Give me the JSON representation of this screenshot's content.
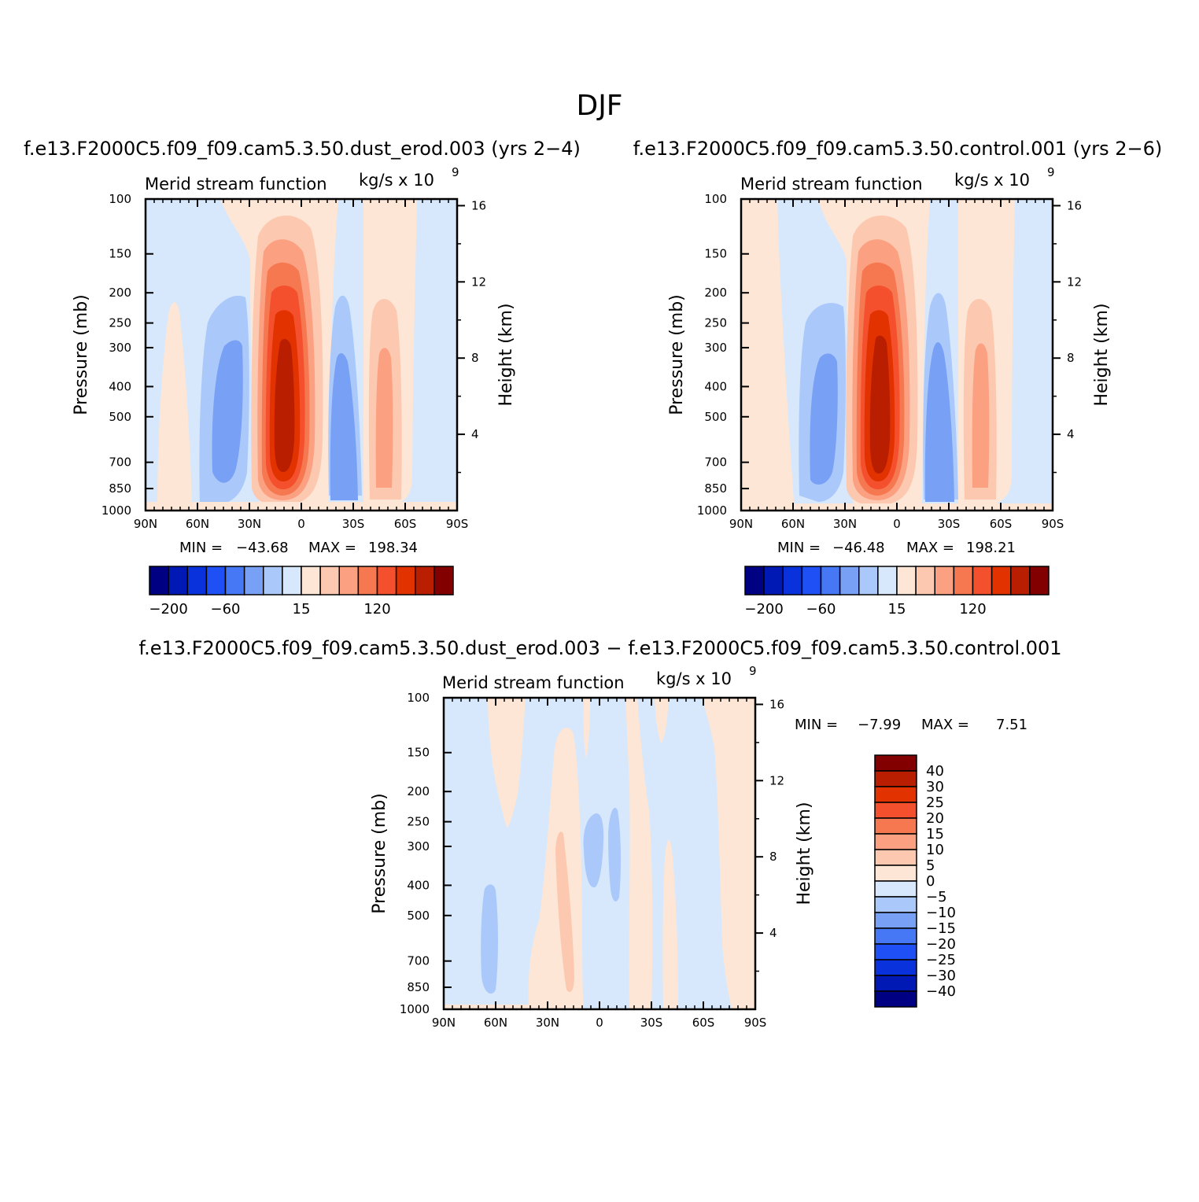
{
  "figure": {
    "title": "DJF"
  },
  "chart_data": [
    {
      "type": "heatmap",
      "panel": "top-left",
      "case_title": "f.e13.F2000C5.f09_f09.cam5.3.50.dust_erod.003 (yrs 2−4)",
      "subtitle_left": "Merid stream function",
      "units_label": "kg/s x 10",
      "units_exponent": "9",
      "ylabel": "Pressure (mb)",
      "ylabel_right": "Height (km)",
      "xlim": [
        90,
        -90
      ],
      "x_ticks": [
        "90N",
        "60N",
        "30N",
        "0",
        "30S",
        "60S",
        "90S"
      ],
      "y_ticks": [
        "100",
        "150",
        "200",
        "250",
        "300",
        "400",
        "500",
        "700",
        "850",
        "1000"
      ],
      "y_right_ticks": [
        "16",
        "12",
        "8",
        "4"
      ],
      "min_label": "MIN =",
      "min_value": "−43.68",
      "max_label": "MAX =",
      "max_value": "198.34",
      "colorbar_labels": [
        "−200",
        "−60",
        "15",
        "120"
      ],
      "cells": [
        {
          "lat": 70,
          "plev": 500,
          "value": -10,
          "wlat": 10,
          "wp": 380
        },
        {
          "lat": 38,
          "plev": 450,
          "value": -40,
          "wlat": 12,
          "wp": 550
        },
        {
          "lat": 12,
          "plev": 550,
          "value": 198,
          "wlat": 14,
          "wp": 650
        },
        {
          "lat": -22,
          "plev": 550,
          "value": -40,
          "wlat": 10,
          "wp": 500
        },
        {
          "lat": -45,
          "plev": 520,
          "value": 40,
          "wlat": 8,
          "wp": 460
        }
      ]
    },
    {
      "type": "heatmap",
      "panel": "top-right",
      "case_title": "f.e13.F2000C5.f09_f09.cam5.3.50.control.001 (yrs 2−6)",
      "subtitle_left": "Merid stream function",
      "units_label": "kg/s x 10",
      "units_exponent": "9",
      "ylabel": "Pressure (mb)",
      "ylabel_right": "Height (km)",
      "xlim": [
        90,
        -90
      ],
      "x_ticks": [
        "90N",
        "60N",
        "30N",
        "0",
        "30S",
        "60S",
        "90S"
      ],
      "y_ticks": [
        "100",
        "150",
        "200",
        "250",
        "300",
        "400",
        "500",
        "700",
        "850",
        "1000"
      ],
      "y_right_ticks": [
        "16",
        "12",
        "8",
        "4"
      ],
      "min_label": "MIN =",
      "min_value": "−46.48",
      "max_label": "MAX =",
      "max_value": "198.21",
      "colorbar_labels": [
        "−200",
        "−60",
        "15",
        "120"
      ],
      "cells": [
        {
          "lat": 80,
          "plev": 500,
          "value": 5,
          "wlat": 10,
          "wp": 800
        },
        {
          "lat": 38,
          "plev": 500,
          "value": -40,
          "wlat": 12,
          "wp": 550
        },
        {
          "lat": 10,
          "plev": 550,
          "value": 198,
          "wlat": 14,
          "wp": 650
        },
        {
          "lat": -22,
          "plev": 550,
          "value": -40,
          "wlat": 10,
          "wp": 550
        },
        {
          "lat": -46,
          "plev": 550,
          "value": 40,
          "wlat": 8,
          "wp": 450
        }
      ]
    },
    {
      "type": "heatmap",
      "panel": "bottom",
      "case_title": "f.e13.F2000C5.f09_f09.cam5.3.50.dust_erod.003 − f.e13.F2000C5.f09_f09.cam5.3.50.control.001",
      "subtitle_left": "Merid stream function",
      "units_label": "kg/s x 10",
      "units_exponent": "9",
      "ylabel": "Pressure (mb)",
      "ylabel_right": "Height (km)",
      "xlim": [
        90,
        -90
      ],
      "x_ticks": [
        "90N",
        "60N",
        "30N",
        "0",
        "30S",
        "60S",
        "90S"
      ],
      "y_ticks": [
        "100",
        "150",
        "200",
        "250",
        "300",
        "400",
        "500",
        "700",
        "850",
        "1000"
      ],
      "y_right_ticks": [
        "16",
        "12",
        "8",
        "4"
      ],
      "min_label": "MIN =",
      "min_value": "−7.99",
      "max_label": "MAX =",
      "max_value": "7.51",
      "colorbar_labels": [
        "40",
        "30",
        "25",
        "20",
        "15",
        "10",
        "5",
        "0",
        "−5",
        "−10",
        "−15",
        "−20",
        "−25",
        "−30",
        "−40"
      ],
      "cells": [
        {
          "lat": 65,
          "plev": 650,
          "value": -7.99,
          "wlat": 3,
          "wp": 400
        },
        {
          "lat": 22,
          "plev": 600,
          "value": 7.51,
          "wlat": 4,
          "wp": 500
        },
        {
          "lat": -2,
          "plev": 320,
          "value": -6,
          "wlat": 3,
          "wp": 150
        },
        {
          "lat": -8,
          "plev": 330,
          "value": -6,
          "wlat": 2,
          "wp": 200
        }
      ]
    }
  ],
  "palette": [
    "#000082",
    "#0019b4",
    "#0a32dc",
    "#1e50f5",
    "#4678f5",
    "#78a0f5",
    "#aac8fa",
    "#d7e8fc",
    "#fde6d5",
    "#fdc8b0",
    "#fca082",
    "#f57850",
    "#f5502d",
    "#e13200",
    "#b91e00",
    "#820000"
  ]
}
